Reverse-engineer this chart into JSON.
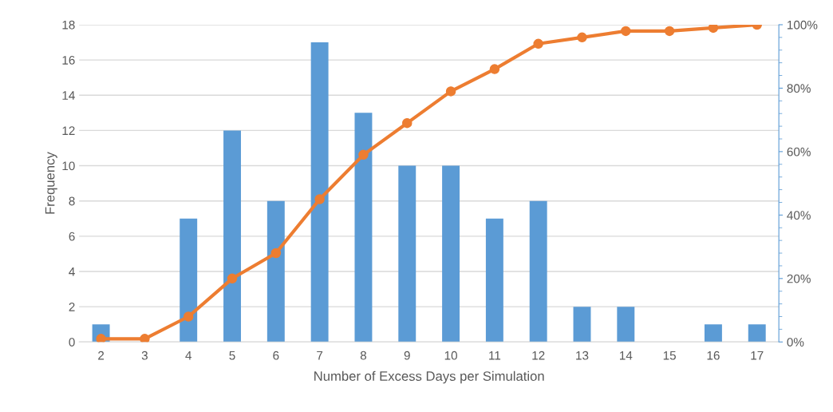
{
  "chart_data": {
    "type": "bar",
    "xlabel": "Number of Excess Days per Simulation",
    "ylabel": "Frequency",
    "categories": [
      "2",
      "3",
      "4",
      "5",
      "6",
      "7",
      "8",
      "9",
      "10",
      "11",
      "12",
      "13",
      "14",
      "15",
      "16",
      "17"
    ],
    "series": [
      {
        "color": "#5b9bd5",
        "values": [
          1,
          0,
          7,
          12,
          8,
          17,
          13,
          10,
          10,
          7,
          8,
          2,
          2,
          0,
          1,
          1
        ]
      },
      {
        "type": "line",
        "axis": "y2",
        "color": "#ed7d31",
        "marker": "circle",
        "values": [
          1,
          1,
          8,
          20,
          28,
          45,
          59,
          69,
          79,
          86,
          94,
          96,
          98,
          98,
          99,
          100
        ]
      }
    ],
    "ylim": [
      0,
      18
    ],
    "yticks": [
      0,
      2,
      4,
      6,
      8,
      10,
      12,
      14,
      16,
      18
    ],
    "y2lim": [
      0,
      100
    ],
    "y2ticks": [
      {
        "value": 0,
        "label": "0%"
      },
      {
        "value": 20,
        "label": "20%"
      },
      {
        "value": 40,
        "label": "40%"
      },
      {
        "value": 60,
        "label": "60%"
      },
      {
        "value": 80,
        "label": "80%"
      },
      {
        "value": 100,
        "label": "100%"
      }
    ],
    "grid": "y",
    "legend": false
  }
}
